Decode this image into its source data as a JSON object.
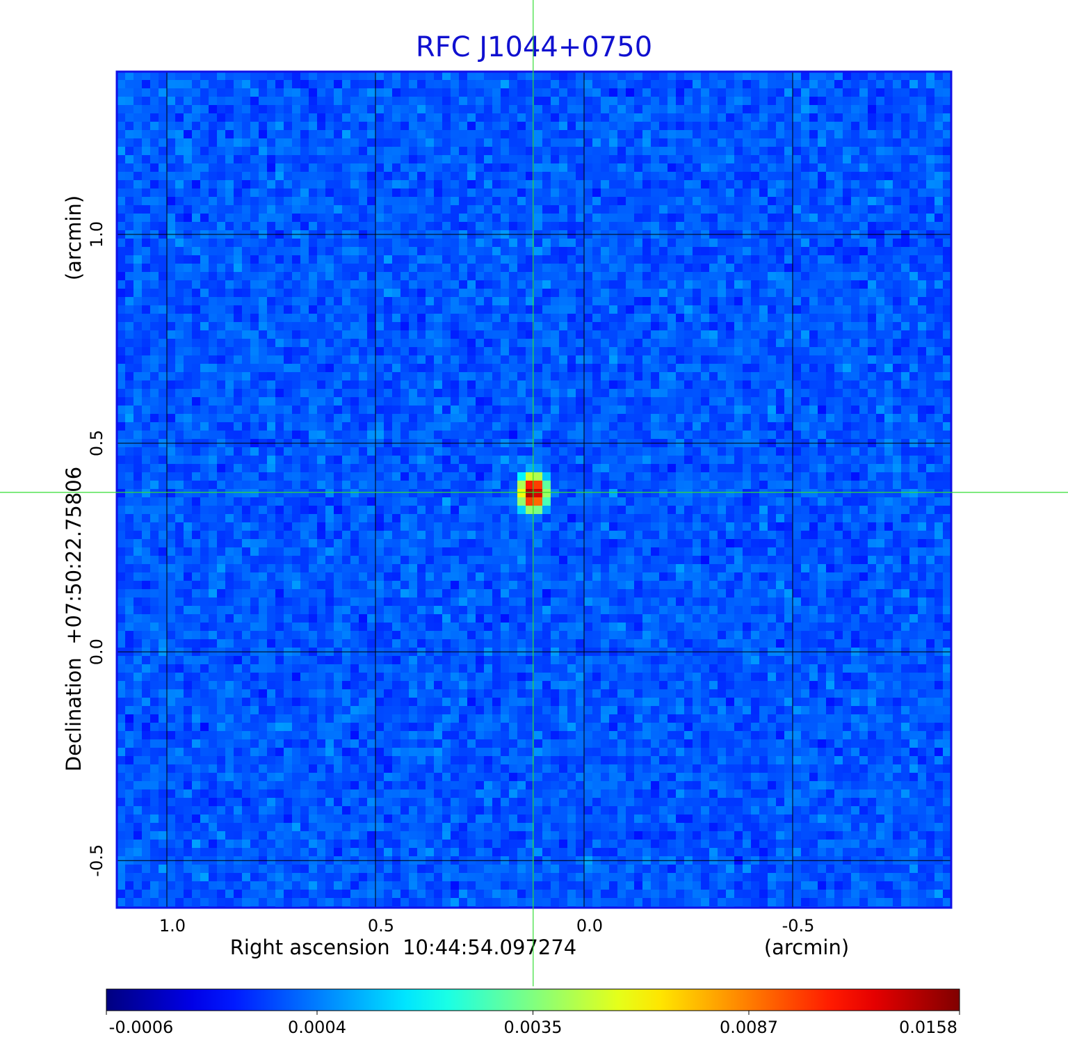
{
  "chart_data": {
    "type": "image",
    "title": "RFC J1044+0750",
    "x_label": "Right ascension  10:44:54.097274",
    "x_unit": "(arcmin)",
    "y_label": "Declination  +07:50:22.75806",
    "y_unit": "(arcmin)",
    "xlim": [
      1.12,
      -0.88
    ],
    "ylim": [
      -0.613,
      1.39
    ],
    "xticks": [
      {
        "value": 1,
        "label": "1.0"
      },
      0.5,
      {
        "value": 0,
        "label": "0.0"
      },
      -0.5
    ],
    "yticks": [
      -0.5,
      {
        "value": 0,
        "label": "0.0"
      },
      0.5,
      {
        "value": 1,
        "label": "1.0"
      }
    ],
    "grid": true,
    "source": {
      "x": 0.122,
      "y": 0.382
    },
    "colormap": "jet",
    "colorbar_scale": "sqrt",
    "clim": [
      -0.0006,
      0.0158
    ],
    "colorbar_ticks": [
      -0.0006,
      0.0004,
      0.0035,
      0.0087,
      0.0158
    ],
    "frame_color": "#1010e8",
    "crosshair_color": "#33dd33"
  }
}
